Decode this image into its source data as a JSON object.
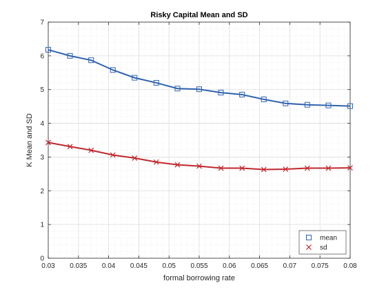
{
  "chart_data": {
    "type": "line",
    "title": "Risky Capital Mean and SD",
    "xlabel": "formal borrowing rate",
    "ylabel": "K Mean and SD",
    "xlim": [
      0.03,
      0.08
    ],
    "ylim": [
      0,
      7
    ],
    "x": [
      0.03,
      0.0336,
      0.0371,
      0.0407,
      0.0443,
      0.0479,
      0.0514,
      0.055,
      0.0586,
      0.0621,
      0.0657,
      0.0693,
      0.0729,
      0.0764,
      0.08
    ],
    "xticks": [
      "0.03",
      "0.035",
      "0.04",
      "0.045",
      "0.05",
      "0.055",
      "0.06",
      "0.065",
      "0.07",
      "0.075",
      "0.08"
    ],
    "yticks": [
      "0",
      "1",
      "2",
      "3",
      "4",
      "5",
      "6",
      "7"
    ],
    "grid": true,
    "minor_grid": true,
    "legend_position": "bottom-right",
    "series": [
      {
        "name": "mean",
        "color": "#2e62b0",
        "marker": "square",
        "values": [
          6.18,
          6.0,
          5.87,
          5.58,
          5.35,
          5.2,
          5.03,
          5.01,
          4.91,
          4.85,
          4.71,
          4.59,
          4.55,
          4.53,
          4.51
        ]
      },
      {
        "name": "sd",
        "color": "#c0272d",
        "marker": "x",
        "values": [
          3.43,
          3.31,
          3.2,
          3.06,
          2.97,
          2.85,
          2.77,
          2.73,
          2.67,
          2.67,
          2.63,
          2.64,
          2.67,
          2.67,
          2.68
        ]
      }
    ]
  }
}
